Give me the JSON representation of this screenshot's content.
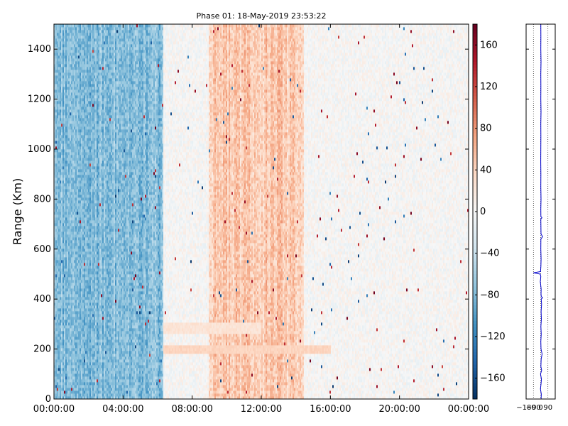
{
  "chart_data": [
    {
      "type": "heatmap",
      "title": "Phase 01: 18-May-2019 23:53:22",
      "xlabel": "",
      "ylabel": "Range (Km)",
      "x_tick_labels": [
        "00:00:00",
        "04:00:00",
        "08:00:00",
        "12:00:00",
        "16:00:00",
        "20:00:00",
        "00:00:00"
      ],
      "x_tick_hours": [
        0,
        4,
        8,
        12,
        16,
        20,
        24
      ],
      "xlim_hours": [
        0,
        24
      ],
      "ylim": [
        0,
        1500
      ],
      "y_ticks": [
        0,
        200,
        400,
        600,
        800,
        1000,
        1200,
        1400
      ],
      "colorscale": {
        "name": "RdBu_r",
        "range": [
          -180,
          180
        ],
        "ticks": [
          160,
          120,
          80,
          40,
          0,
          -40,
          -80,
          -120,
          -160
        ],
        "tick_labels": [
          "160",
          "120",
          "80",
          "40",
          "0",
          "−40",
          "−80",
          "−120",
          "−160"
        ]
      },
      "phase_regions": [
        {
          "hours": [
            0,
            6.3
          ],
          "mean_phase": -90,
          "description_value": "strong negative"
        },
        {
          "hours": [
            6.3,
            9
          ],
          "mean_phase": 0
        },
        {
          "hours": [
            9,
            14.5
          ],
          "mean_phase": 55
        },
        {
          "hours": [
            14.5,
            24
          ],
          "mean_phase": 0
        }
      ],
      "grid": false
    },
    {
      "type": "line",
      "title": "",
      "x_tick_labels": [
        "−180",
        "−90",
        "0",
        "90"
      ],
      "x_ticks": [
        -180,
        -90,
        0,
        90
      ],
      "xlim": [
        -180,
        180
      ],
      "ylim": [
        0,
        1500
      ],
      "y_ticks": [
        0,
        200,
        400,
        600,
        800,
        1000,
        1200,
        1400
      ],
      "series": [
        {
          "color": "#0000cc",
          "points": [
            [
              5,
              0
            ],
            [
              8,
              20
            ],
            [
              -3,
              40
            ],
            [
              4,
              60
            ],
            [
              10,
              80
            ],
            [
              -2,
              100
            ],
            [
              12,
              115
            ],
            [
              3,
              130
            ],
            [
              6,
              160
            ],
            [
              18,
              180
            ],
            [
              4,
              200
            ],
            [
              2,
              230
            ],
            [
              7,
              260
            ],
            [
              3,
              290
            ],
            [
              9,
              320
            ],
            [
              5,
              350
            ],
            [
              11,
              380
            ],
            [
              6,
              400
            ],
            [
              24,
              405
            ],
            [
              8,
              410
            ],
            [
              4,
              420
            ],
            [
              6,
              440
            ],
            [
              -4,
              470
            ],
            [
              2,
              490
            ],
            [
              -5,
              500
            ],
            [
              -90,
              505
            ],
            [
              -2,
              510
            ],
            [
              3,
              530
            ],
            [
              5,
              560
            ],
            [
              2,
              600
            ],
            [
              3,
              640
            ],
            [
              24,
              650
            ],
            [
              4,
              660
            ],
            [
              3,
              700
            ],
            [
              2,
              720
            ],
            [
              16,
              725
            ],
            [
              3,
              730
            ],
            [
              2,
              760
            ],
            [
              4,
              800
            ],
            [
              2,
              850
            ],
            [
              3,
              900
            ],
            [
              1,
              950
            ],
            [
              2,
              1000
            ],
            [
              3,
              1050
            ],
            [
              2,
              1100
            ],
            [
              4,
              1150
            ],
            [
              2,
              1200
            ],
            [
              3,
              1250
            ],
            [
              2,
              1300
            ],
            [
              4,
              1350
            ],
            [
              2,
              1400
            ],
            [
              3,
              1450
            ],
            [
              2,
              1500
            ]
          ]
        }
      ],
      "grid": "vertical dotted"
    }
  ]
}
